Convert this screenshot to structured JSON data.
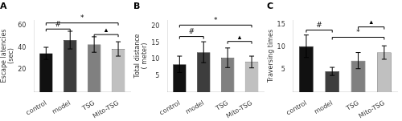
{
  "chart_data": [
    {
      "type": "bar",
      "title": "A",
      "ylabel": "Escape latencies\n(sec)",
      "categories": [
        "control",
        "model",
        "TSG",
        "Mito-TSG"
      ],
      "values": [
        35,
        47,
        43,
        39
      ],
      "errors": [
        5.5,
        8,
        7,
        6.5
      ],
      "colors": [
        "#111111",
        "#3d3d3d",
        "#808080",
        "#c0c0c0"
      ],
      "ylim": [
        0,
        65
      ],
      "yticks": [
        20,
        40,
        60
      ],
      "grid": false,
      "annotations": [
        {
          "x1": "control",
          "x2": "model",
          "y": 57.0,
          "label": "#"
        },
        {
          "x1": "control",
          "x2": "Mito-TSG",
          "y": 62.5,
          "label": "*"
        },
        {
          "x1": "TSG",
          "x2": "Mito-TSG",
          "y": 52.0,
          "label": "▴"
        }
      ]
    },
    {
      "type": "bar",
      "title": "B",
      "ylabel": "Total distance\n( meter)",
      "categories": [
        "control",
        "model",
        "TSG",
        "Mito-TSG"
      ],
      "values": [
        8.5,
        12.2,
        10.5,
        9.2
      ],
      "errors": [
        2.5,
        3.2,
        3.0,
        1.8
      ],
      "colors": [
        "#111111",
        "#3d3d3d",
        "#808080",
        "#c0c0c0"
      ],
      "ylim": [
        0,
        22
      ],
      "yticks": [
        5,
        10,
        15,
        20
      ],
      "grid": false,
      "annotations": [
        {
          "x1": "control",
          "x2": "model",
          "y": 17.0,
          "label": "#"
        },
        {
          "x1": "control",
          "x2": "Mito-TSG",
          "y": 20.5,
          "label": "*"
        },
        {
          "x1": "TSG",
          "x2": "Mito-TSG",
          "y": 15.5,
          "label": "▴"
        }
      ]
    },
    {
      "type": "bar",
      "title": "C",
      "ylabel": "Traversing times",
      "categories": [
        "control",
        "model",
        "TSG",
        "Mito-TSG"
      ],
      "values": [
        10.2,
        4.6,
        7.0,
        8.8
      ],
      "errors": [
        2.5,
        0.9,
        1.8,
        1.5
      ],
      "colors": [
        "#111111",
        "#3d3d3d",
        "#808080",
        "#c0c0c0"
      ],
      "ylim": [
        0,
        16
      ],
      "yticks": [
        5,
        10,
        15
      ],
      "grid": false,
      "annotations": [
        {
          "x1": "control",
          "x2": "model",
          "y": 13.8,
          "label": "#"
        },
        {
          "x1": "model",
          "x2": "Mito-TSG",
          "y": 12.2,
          "label": "*"
        },
        {
          "x1": "TSG",
          "x2": "Mito-TSG",
          "y": 14.5,
          "label": "▴"
        }
      ]
    }
  ]
}
